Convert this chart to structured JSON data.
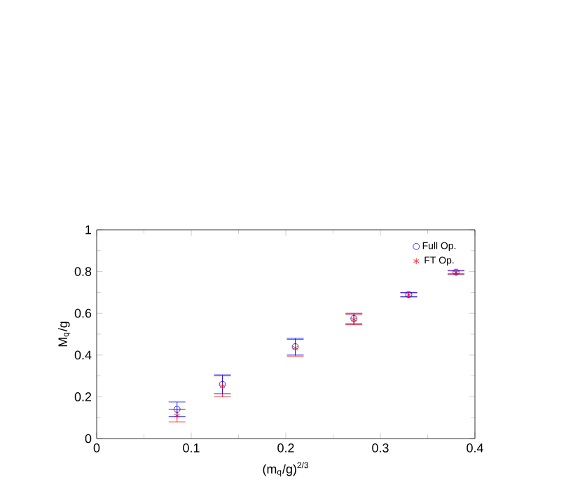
{
  "chart_data": {
    "type": "scatter",
    "xlabel": "(m$_{q}$/g)$^{2/3}$",
    "ylabel": "M$_{q}$/g",
    "x": [
      0.085,
      0.133,
      0.21,
      0.272,
      0.33,
      0.38
    ],
    "series": [
      {
        "name": "Full Op.",
        "color": "#0000ff",
        "marker": "circle",
        "values": [
          0.14,
          0.26,
          0.44,
          0.575,
          0.69,
          0.797
        ],
        "errors": [
          0.035,
          0.045,
          0.04,
          0.025,
          0.01,
          0.008
        ]
      },
      {
        "name": "FT Op.",
        "color": "#ff0000",
        "marker": "cross",
        "values": [
          0.11,
          0.25,
          0.435,
          0.57,
          0.688,
          0.795
        ],
        "errors": [
          0.03,
          0.05,
          0.04,
          0.025,
          0.01,
          0.008
        ]
      }
    ],
    "xlim": [
      0,
      0.4
    ],
    "xticks": [
      0,
      0.1,
      0.2,
      0.3,
      0.4
    ],
    "ylim": [
      0,
      1
    ],
    "yticks": [
      0,
      0.2,
      0.4,
      0.6,
      0.8,
      1
    ],
    "grid": false,
    "legend": "top right"
  }
}
